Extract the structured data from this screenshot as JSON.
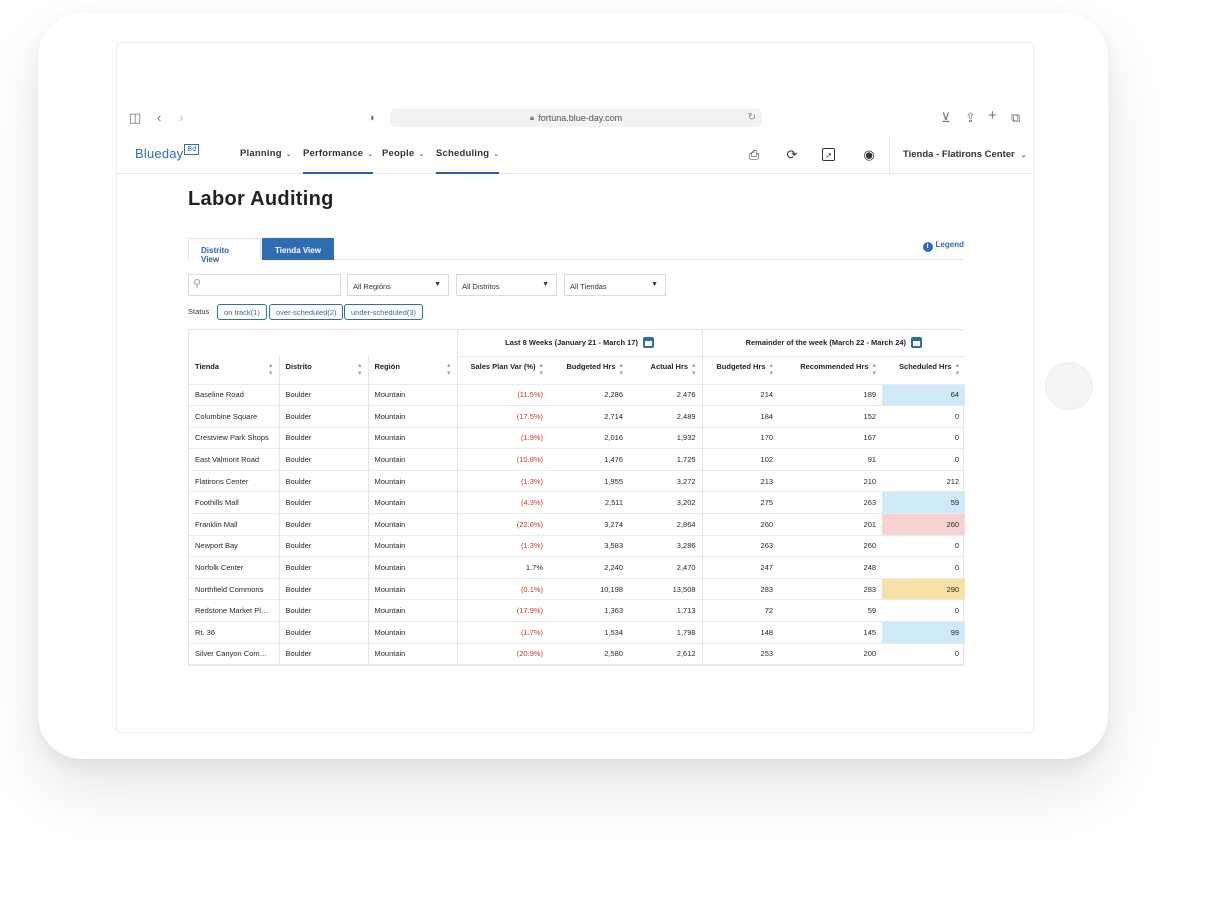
{
  "browser": {
    "url": "fortuna.blue-day.com"
  },
  "app": {
    "logo": "Blueday",
    "logo_badge": "Bd",
    "nav": [
      {
        "label": "Planning"
      },
      {
        "label": "Performance"
      },
      {
        "label": "People"
      },
      {
        "label": "Scheduling"
      }
    ],
    "store_selector": "Tienda - Flatirons Center"
  },
  "page": {
    "title": "Labor Auditing",
    "tabs": [
      "Distrito View",
      "Tienda View"
    ],
    "active_tab": "Tienda View",
    "legend": "Legend",
    "filters": {
      "search_placeholder": "",
      "region": "All Regións",
      "district": "All Distritos",
      "store": "All Tiendas"
    },
    "status": {
      "label": "Status",
      "chips": [
        "on track(1)",
        "over-scheduled(2)",
        "under-scheduled(3)"
      ]
    }
  },
  "table": {
    "group_headers": {
      "last8": "Last 8 Weeks (January 21 - March 17)",
      "remainder": "Remainder of the week (March 22 - March 24)"
    },
    "columns": [
      "Tienda",
      "Distrito",
      "Región",
      "Sales Plan Var (%)",
      "Budgeted Hrs",
      "Actual Hrs",
      "Budgeted Hrs",
      "Recommended Hrs",
      "Scheduled Hrs"
    ],
    "rows": [
      {
        "tienda": "Baseline Road",
        "distrito": "Boulder",
        "region": "Mountain",
        "var": "(11.5%)",
        "bud8": "2,286",
        "act8": "2,476",
        "budw": "214",
        "rec": "189",
        "sch": "64",
        "hl": "blue"
      },
      {
        "tienda": "Columbine Square",
        "distrito": "Boulder",
        "region": "Mountain",
        "var": "(17.5%)",
        "bud8": "2,714",
        "act8": "2,489",
        "budw": "184",
        "rec": "152",
        "sch": "0",
        "hl": ""
      },
      {
        "tienda": "Crestview Park Shops",
        "distrito": "Boulder",
        "region": "Mountain",
        "var": "(1.9%)",
        "bud8": "2,016",
        "act8": "1,932",
        "budw": "170",
        "rec": "167",
        "sch": "0",
        "hl": ""
      },
      {
        "tienda": "East Valmont Road",
        "distrito": "Boulder",
        "region": "Mountain",
        "var": "(10.8%)",
        "bud8": "1,476",
        "act8": "1,725",
        "budw": "102",
        "rec": "91",
        "sch": "0",
        "hl": ""
      },
      {
        "tienda": "Flatirons Center",
        "distrito": "Boulder",
        "region": "Mountain",
        "var": "(1.3%)",
        "bud8": "1,955",
        "act8": "3,272",
        "budw": "213",
        "rec": "210",
        "sch": "212",
        "hl": ""
      },
      {
        "tienda": "Foothills Mall",
        "distrito": "Boulder",
        "region": "Mountain",
        "var": "(4.3%)",
        "bud8": "2,511",
        "act8": "3,202",
        "budw": "275",
        "rec": "263",
        "sch": "59",
        "hl": "blue"
      },
      {
        "tienda": "Franklin Mall",
        "distrito": "Boulder",
        "region": "Mountain",
        "var": "(22.6%)",
        "bud8": "3,274",
        "act8": "2,864",
        "budw": "260",
        "rec": "201",
        "sch": "260",
        "hl": "pink"
      },
      {
        "tienda": "Newport Bay",
        "distrito": "Boulder",
        "region": "Mountain",
        "var": "(1.3%)",
        "bud8": "3,583",
        "act8": "3,286",
        "budw": "263",
        "rec": "260",
        "sch": "0",
        "hl": ""
      },
      {
        "tienda": "Norfolk Center",
        "distrito": "Boulder",
        "region": "Mountain",
        "var": "1.7%",
        "bud8": "2,240",
        "act8": "2,470",
        "budw": "247",
        "rec": "248",
        "sch": "0",
        "hl": ""
      },
      {
        "tienda": "Northfield Commons",
        "distrito": "Boulder",
        "region": "Mountain",
        "var": "(0.1%)",
        "bud8": "10,198",
        "act8": "13,508",
        "budw": "283",
        "rec": "283",
        "sch": "290",
        "hl": "yellow"
      },
      {
        "tienda": "Redstone Market Place",
        "distrito": "Boulder",
        "region": "Mountain",
        "var": "(17.9%)",
        "bud8": "1,363",
        "act8": "1,713",
        "budw": "72",
        "rec": "59",
        "sch": "0",
        "hl": ""
      },
      {
        "tienda": "Rt. 36",
        "distrito": "Boulder",
        "region": "Mountain",
        "var": "(1.7%)",
        "bud8": "1,534",
        "act8": "1,798",
        "budw": "148",
        "rec": "145",
        "sch": "99",
        "hl": "blue"
      },
      {
        "tienda": "Silver Canyon Comm…",
        "distrito": "Boulder",
        "region": "Mountain",
        "var": "(20.9%)",
        "bud8": "2,580",
        "act8": "2,612",
        "budw": "253",
        "rec": "200",
        "sch": "0",
        "hl": ""
      }
    ]
  },
  "colors": {
    "accent": "#2f6db3",
    "negative": "#c0392b",
    "under": "#cdeaf6",
    "over": "#f6d3cf",
    "warn": "#f8e1a6"
  },
  "icons": [
    "sidebar-icon",
    "back-icon",
    "forward-icon",
    "shield-icon",
    "lock-icon",
    "reload-icon",
    "download-icon",
    "share-icon",
    "new-tab-icon",
    "tabs-icon",
    "print-icon",
    "sync-icon",
    "export-icon",
    "user-icon",
    "search-icon",
    "info-icon",
    "calendar-icon",
    "sort-icon"
  ]
}
